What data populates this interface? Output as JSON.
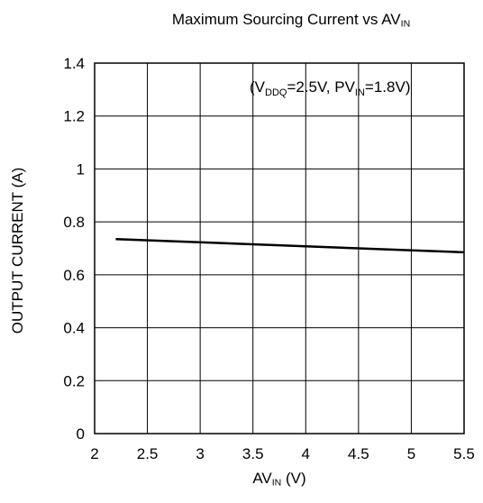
{
  "chart_data": {
    "type": "line",
    "title": {
      "main": "Maximum Sourcing Current vs AV",
      "sub": "IN"
    },
    "xlabel": {
      "main": "AV",
      "sub": "IN",
      "unit": " (V)"
    },
    "ylabel": "OUTPUT CURRENT (A)",
    "xlim": [
      2,
      5.5
    ],
    "ylim": [
      0,
      1.4
    ],
    "x_ticks": [
      "2",
      "2.5",
      "3",
      "3.5",
      "4",
      "4.5",
      "5",
      "5.5"
    ],
    "y_ticks": [
      "0",
      "0.2",
      "0.4",
      "0.6",
      "0.8",
      "1",
      "1.2",
      "1.4"
    ],
    "grid": true,
    "annotation": {
      "open": "(V",
      "vddq_sub": "DDQ",
      "mid": "=2.5V, PV",
      "pvin_sub": "IN",
      "close": "=1.8V)"
    },
    "series": [
      {
        "x": [
          2.2,
          5.5
        ],
        "y": [
          0.735,
          0.685
        ],
        "color": "#000000"
      }
    ]
  }
}
